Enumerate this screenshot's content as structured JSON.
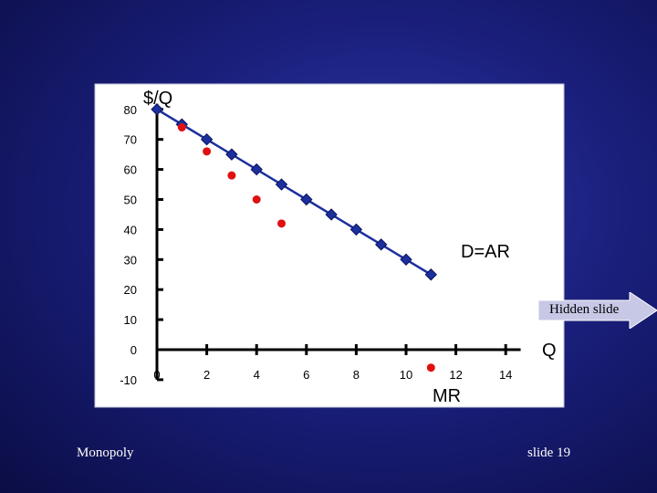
{
  "slide": {
    "footer_left": "Monopoly",
    "footer_right": "slide 19",
    "hidden_badge": "Hidden slide"
  },
  "colors": {
    "background": "#1a1f7c",
    "plot_area": "#ffffff",
    "demand_series": "#1c2f9e",
    "mr_series": "#e01010",
    "badge_fill": "#c7c7e6"
  },
  "chart_data": {
    "type": "scatter",
    "title": "",
    "ylabel": "$/Q",
    "xlabel": "Q",
    "xlim": [
      0,
      16
    ],
    "ylim": [
      -10,
      80
    ],
    "x_ticks": [
      "0",
      "2",
      "4",
      "6",
      "8",
      "10",
      "12",
      "14"
    ],
    "y_ticks": [
      "80",
      "70",
      "60",
      "50",
      "40",
      "30",
      "20",
      "10",
      "0",
      "-10"
    ],
    "series": [
      {
        "name": "D=AR",
        "style": "line-diamond",
        "color": "#1c2f9e",
        "x": [
          0,
          1,
          2,
          3,
          4,
          5,
          6,
          7,
          8,
          9,
          10,
          11
        ],
        "y": [
          80,
          75,
          70,
          65,
          60,
          55,
          50,
          45,
          40,
          35,
          30,
          25
        ]
      },
      {
        "name": "MR",
        "style": "dots",
        "color": "#e01010",
        "x": [
          1,
          2,
          3,
          4,
          5,
          11
        ],
        "y": [
          74,
          66,
          58,
          50,
          42,
          -6
        ]
      }
    ],
    "legend": "labels-on-chart"
  }
}
